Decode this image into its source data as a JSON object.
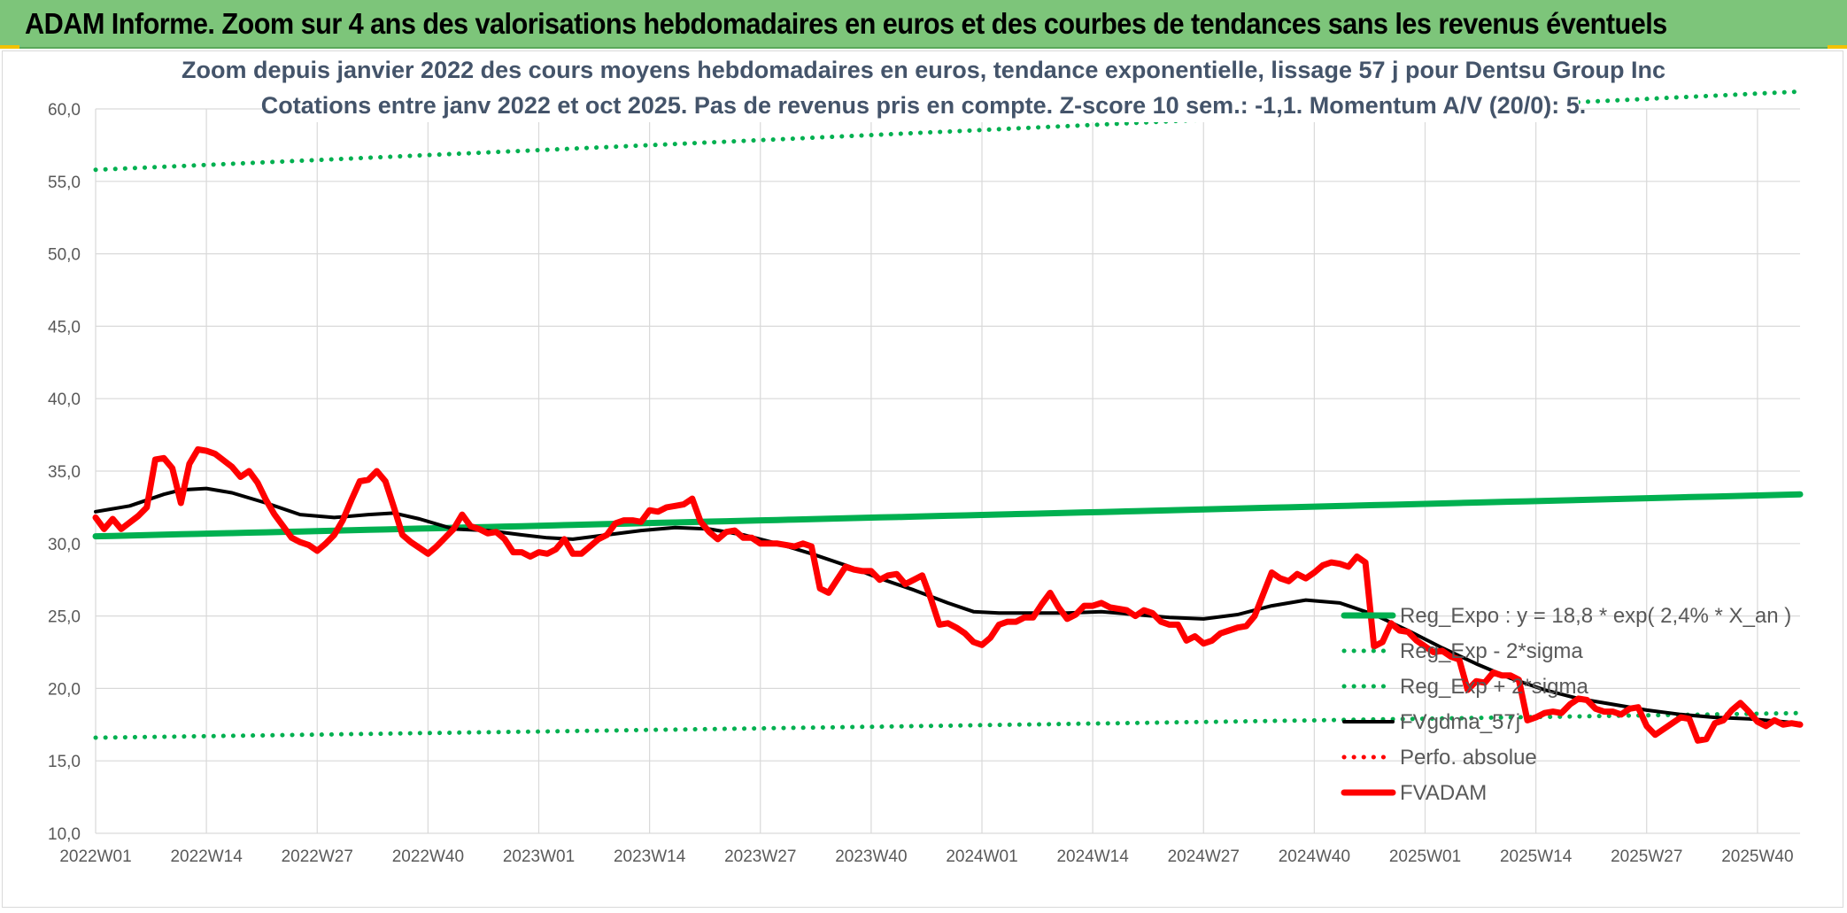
{
  "banner": {
    "title": "ADAM Informe. Zoom sur 4 ans des valorisations hebdomadaires en euros et des courbes de tendances sans les revenus éventuels"
  },
  "colors": {
    "banner": "#7dc57a",
    "trend": "#00b050",
    "smooth": "#000000",
    "price": "#ff0000",
    "grid": "#d9d9d9"
  },
  "chart_data": {
    "type": "line",
    "title": "Zoom depuis janvier 2022 des cours moyens hebdomadaires en euros, tendance exponentielle, lissage 57 j pour Dentsu Group Inc",
    "subtitle": "Cotations entre janv 2022 et oct 2025. Pas de revenus pris en compte. Z-score 10 sem.: -1,1. Momentum A/V (20/0): 5.",
    "xlabel": "",
    "ylabel": "",
    "ylim": [
      10,
      60
    ],
    "yticks": [
      "10,0",
      "15,0",
      "20,0",
      "25,0",
      "30,0",
      "35,0",
      "40,0",
      "45,0",
      "50,0",
      "55,0",
      "60,0"
    ],
    "x_tick_labels": [
      "2022W01",
      "2022W14",
      "2022W27",
      "2022W40",
      "2023W01",
      "2023W14",
      "2023W27",
      "2023W40",
      "2024W01",
      "2024W14",
      "2024W27",
      "2024W40",
      "2025W01",
      "2025W14",
      "2025W27",
      "2025W40"
    ],
    "x_tick_index": [
      0,
      13,
      26,
      39,
      52,
      65,
      78,
      91,
      104,
      117,
      130,
      143,
      156,
      169,
      182,
      195
    ],
    "x_count": 201,
    "grid": true,
    "legend_position": "bottom-right",
    "series": [
      {
        "name": "Reg_Expo : y = 18,8 * exp( 2,4% *  X_an )",
        "style": "solid-thick",
        "color": "#00b050",
        "points": [
          [
            0,
            30.5
          ],
          [
            200,
            33.4
          ]
        ]
      },
      {
        "name": "Reg_Exp - 2*sigma",
        "style": "dotted",
        "color": "#00b050",
        "points": [
          [
            0,
            16.6
          ],
          [
            200,
            18.3
          ]
        ]
      },
      {
        "name": "Reg_Exp + 2*sigma",
        "style": "dotted",
        "color": "#00b050",
        "points": [
          [
            0,
            55.8
          ],
          [
            200,
            61.2
          ]
        ]
      },
      {
        "name": "FVgdma_57j",
        "style": "solid",
        "color": "#000000",
        "points": [
          [
            0,
            32.2
          ],
          [
            4,
            32.6
          ],
          [
            8,
            33.4
          ],
          [
            10,
            33.7
          ],
          [
            13,
            33.8
          ],
          [
            16,
            33.5
          ],
          [
            20,
            32.8
          ],
          [
            24,
            32.0
          ],
          [
            28,
            31.8
          ],
          [
            32,
            32.0
          ],
          [
            35,
            32.1
          ],
          [
            38,
            31.7
          ],
          [
            42,
            31.0
          ],
          [
            46,
            30.9
          ],
          [
            50,
            30.6
          ],
          [
            53,
            30.4
          ],
          [
            56,
            30.3
          ],
          [
            60,
            30.6
          ],
          [
            64,
            30.9
          ],
          [
            68,
            31.1
          ],
          [
            72,
            31.0
          ],
          [
            76,
            30.6
          ],
          [
            80,
            30.0
          ],
          [
            84,
            29.3
          ],
          [
            88,
            28.5
          ],
          [
            92,
            27.6
          ],
          [
            96,
            26.8
          ],
          [
            100,
            25.9
          ],
          [
            103,
            25.3
          ],
          [
            106,
            25.2
          ],
          [
            110,
            25.2
          ],
          [
            114,
            25.2
          ],
          [
            118,
            25.3
          ],
          [
            122,
            25.1
          ],
          [
            126,
            24.9
          ],
          [
            130,
            24.8
          ],
          [
            134,
            25.1
          ],
          [
            138,
            25.7
          ],
          [
            142,
            26.1
          ],
          [
            146,
            25.9
          ],
          [
            150,
            25.1
          ],
          [
            154,
            24.0
          ],
          [
            158,
            22.8
          ],
          [
            162,
            21.7
          ],
          [
            166,
            20.7
          ],
          [
            170,
            19.9
          ],
          [
            174,
            19.3
          ],
          [
            178,
            18.9
          ],
          [
            182,
            18.5
          ],
          [
            186,
            18.2
          ],
          [
            190,
            18.0
          ],
          [
            194,
            17.9
          ],
          [
            198,
            17.7
          ],
          [
            200,
            17.6
          ]
        ]
      },
      {
        "name": "Perfo. absolue",
        "style": "dotted",
        "color": "#ff0000",
        "points": []
      },
      {
        "name": "FVADAM",
        "style": "solid-thick",
        "color": "#ff0000",
        "points": [
          [
            0,
            31.8
          ],
          [
            1,
            31.0
          ],
          [
            2,
            31.7
          ],
          [
            3,
            31.0
          ],
          [
            5,
            31.9
          ],
          [
            6,
            32.5
          ],
          [
            7,
            35.8
          ],
          [
            8,
            35.9
          ],
          [
            9,
            35.2
          ],
          [
            10,
            32.8
          ],
          [
            11,
            35.5
          ],
          [
            12,
            36.5
          ],
          [
            13,
            36.4
          ],
          [
            14,
            36.2
          ],
          [
            16,
            35.3
          ],
          [
            17,
            34.6
          ],
          [
            18,
            35.0
          ],
          [
            19,
            34.2
          ],
          [
            20,
            33.0
          ],
          [
            21,
            32.0
          ],
          [
            22,
            31.2
          ],
          [
            23,
            30.4
          ],
          [
            24,
            30.1
          ],
          [
            25,
            29.9
          ],
          [
            26,
            29.5
          ],
          [
            27,
            30.0
          ],
          [
            28,
            30.6
          ],
          [
            29,
            31.6
          ],
          [
            30,
            33.0
          ],
          [
            31,
            34.3
          ],
          [
            32,
            34.4
          ],
          [
            33,
            35.0
          ],
          [
            34,
            34.3
          ],
          [
            35,
            32.5
          ],
          [
            36,
            30.6
          ],
          [
            37,
            30.1
          ],
          [
            38,
            29.7
          ],
          [
            39,
            29.3
          ],
          [
            40,
            29.8
          ],
          [
            41,
            30.4
          ],
          [
            42,
            31.0
          ],
          [
            43,
            32.0
          ],
          [
            44,
            31.2
          ],
          [
            45,
            31.0
          ],
          [
            46,
            30.7
          ],
          [
            47,
            30.8
          ],
          [
            48,
            30.3
          ],
          [
            49,
            29.4
          ],
          [
            50,
            29.4
          ],
          [
            51,
            29.1
          ],
          [
            52,
            29.4
          ],
          [
            53,
            29.3
          ],
          [
            54,
            29.6
          ],
          [
            55,
            30.3
          ],
          [
            56,
            29.3
          ],
          [
            57,
            29.3
          ],
          [
            58,
            29.8
          ],
          [
            59,
            30.3
          ],
          [
            60,
            30.6
          ],
          [
            61,
            31.4
          ],
          [
            62,
            31.6
          ],
          [
            63,
            31.6
          ],
          [
            64,
            31.5
          ],
          [
            65,
            32.3
          ],
          [
            66,
            32.2
          ],
          [
            67,
            32.5
          ],
          [
            68,
            32.6
          ],
          [
            69,
            32.7
          ],
          [
            70,
            33.1
          ],
          [
            71,
            31.5
          ],
          [
            72,
            30.8
          ],
          [
            73,
            30.3
          ],
          [
            74,
            30.8
          ],
          [
            75,
            30.9
          ],
          [
            76,
            30.4
          ],
          [
            77,
            30.4
          ],
          [
            78,
            30.0
          ],
          [
            79,
            30.0
          ],
          [
            80,
            30.0
          ],
          [
            81,
            29.9
          ],
          [
            82,
            29.8
          ],
          [
            83,
            30.0
          ],
          [
            84,
            29.8
          ],
          [
            85,
            26.9
          ],
          [
            86,
            26.6
          ],
          [
            87,
            27.5
          ],
          [
            88,
            28.4
          ],
          [
            89,
            28.2
          ],
          [
            90,
            28.1
          ],
          [
            91,
            28.1
          ],
          [
            92,
            27.5
          ],
          [
            93,
            27.8
          ],
          [
            94,
            27.9
          ],
          [
            95,
            27.2
          ],
          [
            96,
            27.5
          ],
          [
            97,
            27.8
          ],
          [
            98,
            26.2
          ],
          [
            99,
            24.4
          ],
          [
            100,
            24.5
          ],
          [
            101,
            24.2
          ],
          [
            102,
            23.8
          ],
          [
            103,
            23.2
          ],
          [
            104,
            23.0
          ],
          [
            105,
            23.5
          ],
          [
            106,
            24.4
          ],
          [
            107,
            24.6
          ],
          [
            108,
            24.6
          ],
          [
            109,
            24.9
          ],
          [
            110,
            24.9
          ],
          [
            111,
            25.8
          ],
          [
            112,
            26.6
          ],
          [
            113,
            25.6
          ],
          [
            114,
            24.8
          ],
          [
            115,
            25.1
          ],
          [
            116,
            25.7
          ],
          [
            117,
            25.7
          ],
          [
            118,
            25.9
          ],
          [
            119,
            25.6
          ],
          [
            120,
            25.5
          ],
          [
            121,
            25.4
          ],
          [
            122,
            25.0
          ],
          [
            123,
            25.4
          ],
          [
            124,
            25.2
          ],
          [
            125,
            24.6
          ],
          [
            126,
            24.4
          ],
          [
            127,
            24.4
          ],
          [
            128,
            23.3
          ],
          [
            129,
            23.6
          ],
          [
            130,
            23.1
          ],
          [
            131,
            23.3
          ],
          [
            132,
            23.8
          ],
          [
            133,
            24.0
          ],
          [
            134,
            24.2
          ],
          [
            135,
            24.3
          ],
          [
            136,
            25.0
          ],
          [
            137,
            26.5
          ],
          [
            138,
            28.0
          ],
          [
            139,
            27.6
          ],
          [
            140,
            27.4
          ],
          [
            141,
            27.9
          ],
          [
            142,
            27.6
          ],
          [
            143,
            28.0
          ],
          [
            144,
            28.5
          ],
          [
            145,
            28.7
          ],
          [
            146,
            28.6
          ],
          [
            147,
            28.4
          ],
          [
            148,
            29.1
          ],
          [
            149,
            28.7
          ],
          [
            150,
            22.9
          ],
          [
            151,
            23.2
          ],
          [
            152,
            24.5
          ],
          [
            153,
            24.0
          ],
          [
            154,
            23.9
          ],
          [
            155,
            23.3
          ],
          [
            156,
            22.9
          ],
          [
            157,
            22.5
          ],
          [
            158,
            22.6
          ],
          [
            159,
            22.2
          ],
          [
            160,
            22.0
          ],
          [
            161,
            19.9
          ],
          [
            162,
            20.5
          ],
          [
            163,
            20.4
          ],
          [
            164,
            21.1
          ],
          [
            165,
            20.9
          ],
          [
            166,
            20.9
          ],
          [
            167,
            20.6
          ],
          [
            168,
            17.8
          ],
          [
            169,
            18.0
          ],
          [
            170,
            18.3
          ],
          [
            171,
            18.4
          ],
          [
            172,
            18.3
          ],
          [
            173,
            18.9
          ],
          [
            174,
            19.3
          ],
          [
            175,
            19.2
          ],
          [
            176,
            18.6
          ],
          [
            177,
            18.4
          ],
          [
            178,
            18.4
          ],
          [
            179,
            18.2
          ],
          [
            180,
            18.6
          ],
          [
            181,
            18.7
          ],
          [
            182,
            17.4
          ],
          [
            183,
            16.8
          ],
          [
            184,
            17.2
          ],
          [
            185,
            17.6
          ],
          [
            186,
            18.0
          ],
          [
            187,
            17.9
          ],
          [
            188,
            16.4
          ],
          [
            189,
            16.5
          ],
          [
            190,
            17.6
          ],
          [
            191,
            17.8
          ],
          [
            192,
            18.5
          ],
          [
            193,
            19.0
          ],
          [
            194,
            18.4
          ],
          [
            195,
            17.7
          ],
          [
            196,
            17.4
          ],
          [
            197,
            17.8
          ],
          [
            198,
            17.5
          ],
          [
            199,
            17.6
          ],
          [
            200,
            17.5
          ]
        ]
      }
    ]
  }
}
